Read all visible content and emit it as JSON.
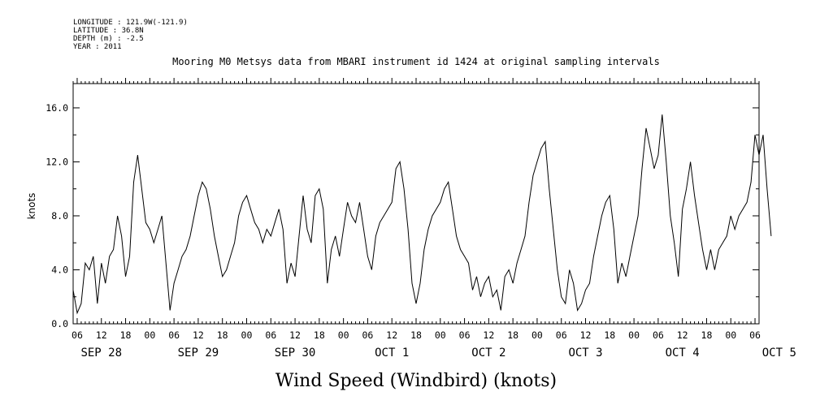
{
  "meta": {
    "longitude": "LONGITUDE : 121.9W(-121.9)",
    "latitude": "LATITUDE : 36.8N",
    "depth": "DEPTH (m) : -2.5",
    "year": "YEAR : 2011"
  },
  "chart_data": {
    "type": "line",
    "title": "Mooring M0 Metsys data from MBARI instrument id 1424 at original sampling intervals",
    "xlabel": "Wind Speed (Windbird) (knots)",
    "ylabel": "knots",
    "ylim": [
      0,
      17.8
    ],
    "yticks": [
      "0.0",
      "4.0",
      "8.0",
      "12.0",
      "16.0"
    ],
    "xlim_hours": [
      "2011-09-28 05:00",
      "2011-10-05 07:00"
    ],
    "x_tick_labels": [
      "06",
      "12",
      "18",
      "00",
      "06",
      "12",
      "18",
      "00",
      "06",
      "12",
      "18",
      "00",
      "06",
      "12",
      "18",
      "00",
      "06",
      "12",
      "18",
      "00",
      "06",
      "12",
      "18",
      "00",
      "06",
      "12",
      "18",
      "00",
      "06"
    ],
    "day_labels": [
      "SEP 28",
      "SEP 29",
      "SEP 30",
      "OCT  1",
      "OCT  2",
      "OCT  3",
      "OCT  4",
      "OCT  5"
    ],
    "grid": false,
    "legend": "none",
    "series": [
      {
        "points": [
          [
            "2011-09-28 05:00",
            2.5
          ],
          [
            "2011-09-28 06:00",
            0.8
          ],
          [
            "2011-09-28 07:00",
            1.5
          ],
          [
            "2011-09-28 08:00",
            4.5
          ],
          [
            "2011-09-28 09:00",
            4.0
          ],
          [
            "2011-09-28 10:00",
            5.0
          ],
          [
            "2011-09-28 11:00",
            1.5
          ],
          [
            "2011-09-28 12:00",
            4.5
          ],
          [
            "2011-09-28 13:00",
            3.0
          ],
          [
            "2011-09-28 14:00",
            5.0
          ],
          [
            "2011-09-28 15:00",
            5.5
          ],
          [
            "2011-09-28 16:00",
            8.0
          ],
          [
            "2011-09-28 17:00",
            6.5
          ],
          [
            "2011-09-28 18:00",
            3.5
          ],
          [
            "2011-09-28 19:00",
            5.0
          ],
          [
            "2011-09-28 20:00",
            10.5
          ],
          [
            "2011-09-28 21:00",
            12.5
          ],
          [
            "2011-09-28 22:00",
            10.0
          ],
          [
            "2011-09-28 23:00",
            7.5
          ],
          [
            "2011-09-29 00:00",
            7.0
          ],
          [
            "2011-09-29 01:00",
            6.0
          ],
          [
            "2011-09-29 02:00",
            7.0
          ],
          [
            "2011-09-29 03:00",
            8.0
          ],
          [
            "2011-09-29 04:00",
            4.5
          ],
          [
            "2011-09-29 05:00",
            1.0
          ],
          [
            "2011-09-29 06:00",
            3.0
          ],
          [
            "2011-09-29 07:00",
            4.0
          ],
          [
            "2011-09-29 08:00",
            5.0
          ],
          [
            "2011-09-29 09:00",
            5.5
          ],
          [
            "2011-09-29 10:00",
            6.5
          ],
          [
            "2011-09-29 11:00",
            8.0
          ],
          [
            "2011-09-29 12:00",
            9.5
          ],
          [
            "2011-09-29 13:00",
            10.5
          ],
          [
            "2011-09-29 14:00",
            10.0
          ],
          [
            "2011-09-29 15:00",
            8.5
          ],
          [
            "2011-09-29 16:00",
            6.5
          ],
          [
            "2011-09-29 17:00",
            5.0
          ],
          [
            "2011-09-29 18:00",
            3.5
          ],
          [
            "2011-09-29 19:00",
            4.0
          ],
          [
            "2011-09-29 20:00",
            5.0
          ],
          [
            "2011-09-29 21:00",
            6.0
          ],
          [
            "2011-09-29 22:00",
            8.0
          ],
          [
            "2011-09-29 23:00",
            9.0
          ],
          [
            "2011-09-30 00:00",
            9.5
          ],
          [
            "2011-09-30 01:00",
            8.5
          ],
          [
            "2011-09-30 02:00",
            7.5
          ],
          [
            "2011-09-30 03:00",
            7.0
          ],
          [
            "2011-09-30 04:00",
            6.0
          ],
          [
            "2011-09-30 05:00",
            7.0
          ],
          [
            "2011-09-30 06:00",
            6.5
          ],
          [
            "2011-09-30 07:00",
            7.5
          ],
          [
            "2011-09-30 08:00",
            8.5
          ],
          [
            "2011-09-30 09:00",
            7.0
          ],
          [
            "2011-09-30 10:00",
            3.0
          ],
          [
            "2011-09-30 11:00",
            4.5
          ],
          [
            "2011-09-30 12:00",
            3.5
          ],
          [
            "2011-09-30 13:00",
            6.5
          ],
          [
            "2011-09-30 14:00",
            9.5
          ],
          [
            "2011-09-30 15:00",
            7.0
          ],
          [
            "2011-09-30 16:00",
            6.0
          ],
          [
            "2011-09-30 17:00",
            9.5
          ],
          [
            "2011-09-30 18:00",
            10.0
          ],
          [
            "2011-09-30 19:00",
            8.5
          ],
          [
            "2011-09-30 20:00",
            3.0
          ],
          [
            "2011-09-30 21:00",
            5.5
          ],
          [
            "2011-09-30 22:00",
            6.5
          ],
          [
            "2011-09-30 23:00",
            5.0
          ],
          [
            "2011-10-01 00:00",
            7.0
          ],
          [
            "2011-10-01 01:00",
            9.0
          ],
          [
            "2011-10-01 02:00",
            8.0
          ],
          [
            "2011-10-01 03:00",
            7.5
          ],
          [
            "2011-10-01 04:00",
            9.0
          ],
          [
            "2011-10-01 05:00",
            7.0
          ],
          [
            "2011-10-01 06:00",
            5.0
          ],
          [
            "2011-10-01 07:00",
            4.0
          ],
          [
            "2011-10-01 08:00",
            6.5
          ],
          [
            "2011-10-01 09:00",
            7.5
          ],
          [
            "2011-10-01 10:00",
            8.0
          ],
          [
            "2011-10-01 11:00",
            8.5
          ],
          [
            "2011-10-01 12:00",
            9.0
          ],
          [
            "2011-10-01 13:00",
            11.5
          ],
          [
            "2011-10-01 14:00",
            12.0
          ],
          [
            "2011-10-01 15:00",
            10.0
          ],
          [
            "2011-10-01 16:00",
            7.0
          ],
          [
            "2011-10-01 17:00",
            3.0
          ],
          [
            "2011-10-01 18:00",
            1.5
          ],
          [
            "2011-10-01 19:00",
            3.0
          ],
          [
            "2011-10-01 20:00",
            5.5
          ],
          [
            "2011-10-01 21:00",
            7.0
          ],
          [
            "2011-10-01 22:00",
            8.0
          ],
          [
            "2011-10-01 23:00",
            8.5
          ],
          [
            "2011-10-02 00:00",
            9.0
          ],
          [
            "2011-10-02 01:00",
            10.0
          ],
          [
            "2011-10-02 02:00",
            10.5
          ],
          [
            "2011-10-02 03:00",
            8.5
          ],
          [
            "2011-10-02 04:00",
            6.5
          ],
          [
            "2011-10-02 05:00",
            5.5
          ],
          [
            "2011-10-02 06:00",
            5.0
          ],
          [
            "2011-10-02 07:00",
            4.5
          ],
          [
            "2011-10-02 08:00",
            2.5
          ],
          [
            "2011-10-02 09:00",
            3.5
          ],
          [
            "2011-10-02 10:00",
            2.0
          ],
          [
            "2011-10-02 11:00",
            3.0
          ],
          [
            "2011-10-02 12:00",
            3.5
          ],
          [
            "2011-10-02 13:00",
            2.0
          ],
          [
            "2011-10-02 14:00",
            2.5
          ],
          [
            "2011-10-02 15:00",
            1.0
          ],
          [
            "2011-10-02 16:00",
            3.5
          ],
          [
            "2011-10-02 17:00",
            4.0
          ],
          [
            "2011-10-02 18:00",
            3.0
          ],
          [
            "2011-10-02 19:00",
            4.5
          ],
          [
            "2011-10-02 20:00",
            5.5
          ],
          [
            "2011-10-02 21:00",
            6.5
          ],
          [
            "2011-10-02 22:00",
            9.0
          ],
          [
            "2011-10-02 23:00",
            11.0
          ],
          [
            "2011-10-03 00:00",
            12.0
          ],
          [
            "2011-10-03 01:00",
            13.0
          ],
          [
            "2011-10-03 02:00",
            13.5
          ],
          [
            "2011-10-03 03:00",
            10.0
          ],
          [
            "2011-10-03 04:00",
            7.0
          ],
          [
            "2011-10-03 05:00",
            4.0
          ],
          [
            "2011-10-03 06:00",
            2.0
          ],
          [
            "2011-10-03 07:00",
            1.5
          ],
          [
            "2011-10-03 08:00",
            4.0
          ],
          [
            "2011-10-03 09:00",
            3.0
          ],
          [
            "2011-10-03 10:00",
            1.0
          ],
          [
            "2011-10-03 11:00",
            1.5
          ],
          [
            "2011-10-03 12:00",
            2.5
          ],
          [
            "2011-10-03 13:00",
            3.0
          ],
          [
            "2011-10-03 14:00",
            5.0
          ],
          [
            "2011-10-03 15:00",
            6.5
          ],
          [
            "2011-10-03 16:00",
            8.0
          ],
          [
            "2011-10-03 17:00",
            9.0
          ],
          [
            "2011-10-03 18:00",
            9.5
          ],
          [
            "2011-10-03 19:00",
            7.0
          ],
          [
            "2011-10-03 20:00",
            3.0
          ],
          [
            "2011-10-03 21:00",
            4.5
          ],
          [
            "2011-10-03 22:00",
            3.5
          ],
          [
            "2011-10-03 23:00",
            5.0
          ],
          [
            "2011-10-04 00:00",
            6.5
          ],
          [
            "2011-10-04 01:00",
            8.0
          ],
          [
            "2011-10-04 02:00",
            11.5
          ],
          [
            "2011-10-04 03:00",
            14.5
          ],
          [
            "2011-10-04 04:00",
            13.0
          ],
          [
            "2011-10-04 05:00",
            11.5
          ],
          [
            "2011-10-04 06:00",
            12.5
          ],
          [
            "2011-10-04 07:00",
            15.5
          ],
          [
            "2011-10-04 08:00",
            12.0
          ],
          [
            "2011-10-04 09:00",
            8.0
          ],
          [
            "2011-10-04 10:00",
            6.0
          ],
          [
            "2011-10-04 11:00",
            3.5
          ],
          [
            "2011-10-04 12:00",
            8.5
          ],
          [
            "2011-10-04 13:00",
            10.0
          ],
          [
            "2011-10-04 14:00",
            12.0
          ],
          [
            "2011-10-04 15:00",
            9.5
          ],
          [
            "2011-10-04 16:00",
            7.5
          ],
          [
            "2011-10-04 17:00",
            5.5
          ],
          [
            "2011-10-04 18:00",
            4.0
          ],
          [
            "2011-10-04 19:00",
            5.5
          ],
          [
            "2011-10-04 20:00",
            4.0
          ],
          [
            "2011-10-04 21:00",
            5.5
          ],
          [
            "2011-10-04 22:00",
            6.0
          ],
          [
            "2011-10-04 23:00",
            6.5
          ],
          [
            "2011-10-05 00:00",
            8.0
          ],
          [
            "2011-10-05 01:00",
            7.0
          ],
          [
            "2011-10-05 02:00",
            8.0
          ],
          [
            "2011-10-05 03:00",
            8.5
          ],
          [
            "2011-10-05 04:00",
            9.0
          ],
          [
            "2011-10-05 05:00",
            10.5
          ],
          [
            "2011-10-05 06:00",
            14.0
          ],
          [
            "2011-10-05 07:00",
            12.5
          ],
          [
            "2011-10-05 08:00",
            14.0
          ],
          [
            "2011-10-05 09:00",
            10.0
          ],
          [
            "2011-10-05 10:00",
            6.5
          ]
        ]
      }
    ]
  }
}
